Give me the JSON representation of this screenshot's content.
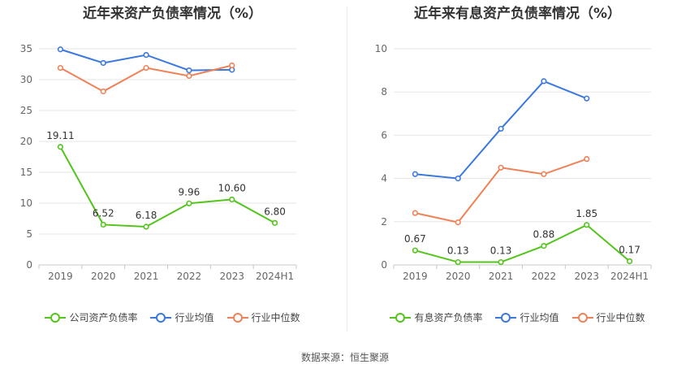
{
  "chart_data": [
    {
      "type": "line",
      "title": "近年来资产负债率情况（%）",
      "categories": [
        "2019",
        "2020",
        "2021",
        "2022",
        "2023",
        "2024H1"
      ],
      "ylim": [
        0,
        35
      ],
      "yticks": [
        0,
        5,
        10,
        15,
        20,
        25,
        30,
        35
      ],
      "grid": true,
      "legend_position": "bottom",
      "series": [
        {
          "name": "公司资产负债率",
          "color": "#52c41a",
          "values": [
            19.11,
            6.52,
            6.18,
            9.96,
            10.6,
            6.8
          ],
          "labels": [
            "19.11",
            "6.52",
            "6.18",
            "9.96",
            "10.60",
            "6.80"
          ]
        },
        {
          "name": "行业均值",
          "color": "#3a78e0",
          "values": [
            34.9,
            32.7,
            34.0,
            31.5,
            31.6,
            null
          ]
        },
        {
          "name": "行业中位数",
          "color": "#f08157",
          "values": [
            31.9,
            28.1,
            31.9,
            30.6,
            32.3,
            null
          ]
        }
      ]
    },
    {
      "type": "line",
      "title": "近年来有息资产负债率情况（%）",
      "categories": [
        "2019",
        "2020",
        "2021",
        "2022",
        "2023",
        "2024H1"
      ],
      "ylim": [
        0,
        10
      ],
      "yticks": [
        0,
        2,
        4,
        6,
        8,
        10
      ],
      "grid": true,
      "legend_position": "bottom",
      "series": [
        {
          "name": "有息资产负债率",
          "color": "#52c41a",
          "values": [
            0.67,
            0.13,
            0.13,
            0.88,
            1.85,
            0.17
          ],
          "labels": [
            "0.67",
            "0.13",
            "0.13",
            "0.88",
            "1.85",
            "0.17"
          ]
        },
        {
          "name": "行业均值",
          "color": "#3a78e0",
          "values": [
            4.2,
            4.0,
            6.3,
            8.5,
            7.7,
            null
          ]
        },
        {
          "name": "行业中位数",
          "color": "#f08157",
          "values": [
            2.4,
            1.97,
            4.5,
            4.2,
            4.9,
            null
          ]
        }
      ]
    }
  ],
  "footer": {
    "source": "数据来源：恒生聚源"
  }
}
